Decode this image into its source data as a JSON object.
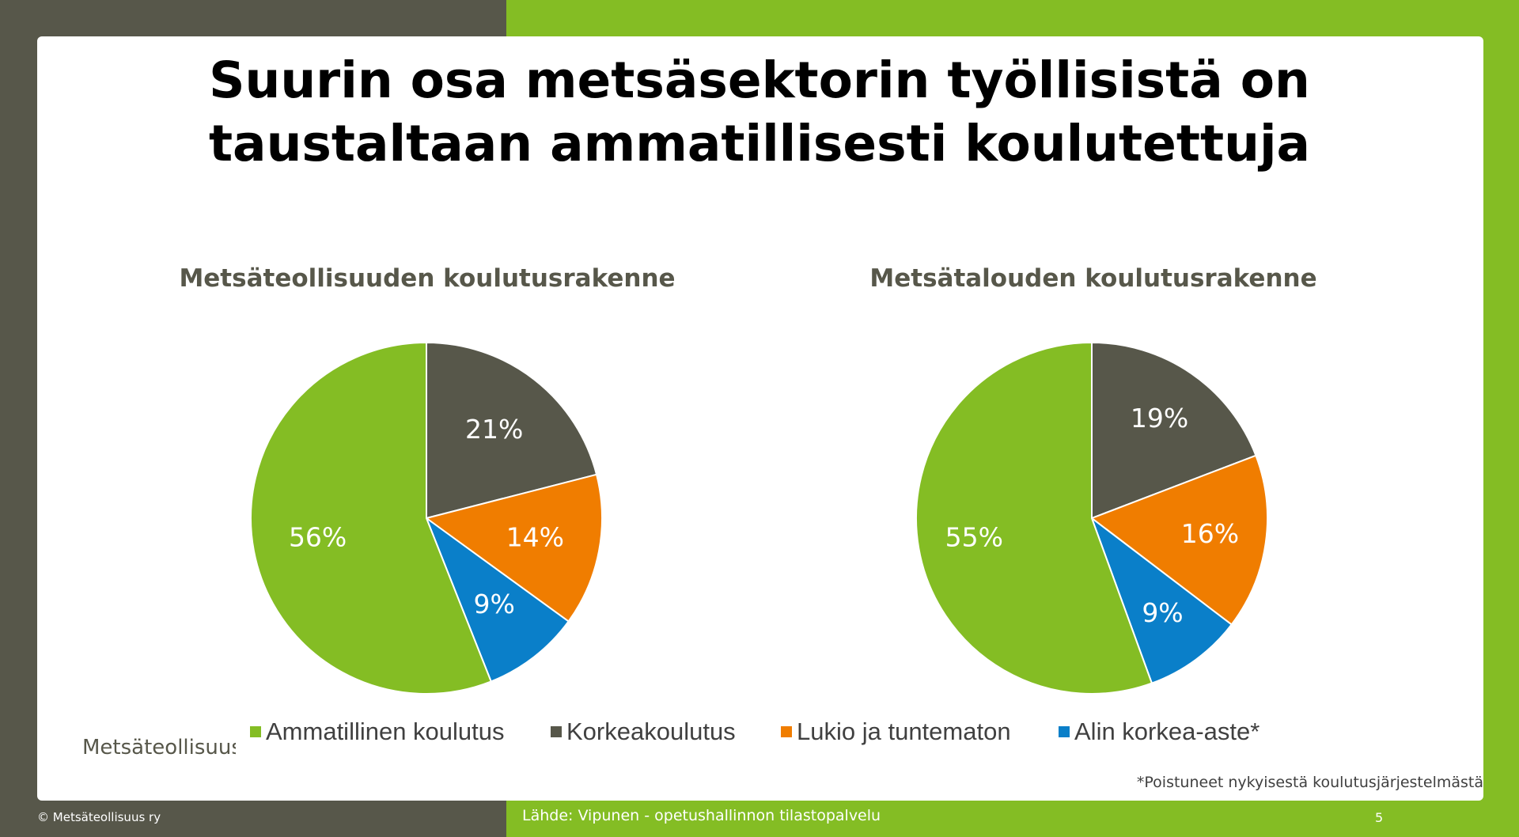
{
  "slide": {
    "title_line1": "Suurin osa metsäsektorin työllisistä on",
    "title_line2": "taustaltaan ammatillisesti koulutettuja",
    "footnote": "*Poistuneet nykyisestä koulutusjärjestelmästä",
    "copyright": "© Metsäteollisuus ry",
    "source": "Lähde: Vipunen - opetushallinnon tilastopalvelu",
    "page_number": "5",
    "logo_text": "Metsäteollisuus"
  },
  "colors": {
    "green": "#84bd24",
    "dark_gray": "#57574a",
    "orange": "#f07d00",
    "blue": "#0a7fc9"
  },
  "legend": [
    {
      "label": "Ammatillinen koulutus",
      "color": "#84bd24"
    },
    {
      "label": "Korkeakoulutus",
      "color": "#57574a"
    },
    {
      "label": "Lukio ja tuntematon",
      "color": "#f07d00"
    },
    {
      "label": "Alin korkea-aste*",
      "color": "#0a7fc9"
    }
  ],
  "chart_data": [
    {
      "type": "pie",
      "title": "Metsäteollisuuden koulutusrakenne",
      "categories": [
        "Korkeakoulutus",
        "Lukio ja tuntematon",
        "Alin korkea-aste*",
        "Ammatillinen koulutus"
      ],
      "values": [
        21,
        14,
        9,
        56
      ],
      "labels": [
        "21%",
        "14%",
        "9%",
        "56%"
      ],
      "colors": [
        "#57574a",
        "#f07d00",
        "#0a7fc9",
        "#84bd24"
      ],
      "start": "12 o'clock, clockwise"
    },
    {
      "type": "pie",
      "title": "Metsätalouden koulutusrakenne",
      "categories": [
        "Korkeakoulutus",
        "Lukio ja tuntematon",
        "Alin korkea-aste*",
        "Ammatillinen koulutus"
      ],
      "values": [
        19,
        16,
        9,
        55
      ],
      "labels": [
        "19%",
        "16%",
        "9%",
        "55%"
      ],
      "colors": [
        "#57574a",
        "#f07d00",
        "#0a7fc9",
        "#84bd24"
      ],
      "start": "12 o'clock, clockwise"
    }
  ]
}
